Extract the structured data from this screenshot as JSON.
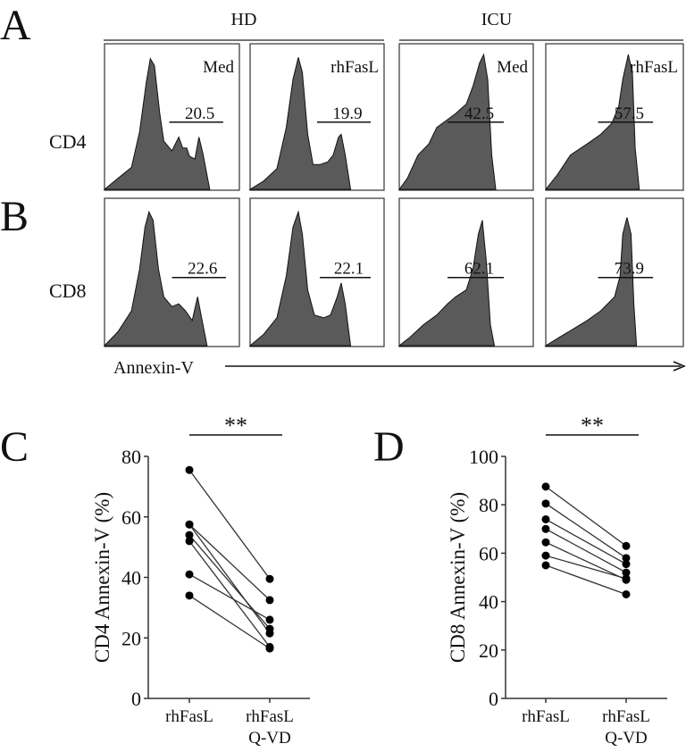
{
  "panel_labels": {
    "a": "A",
    "b": "B",
    "c": "C",
    "d": "D"
  },
  "groups": [
    "HD",
    "ICU"
  ],
  "row_labels": [
    "CD4",
    "CD8"
  ],
  "x_axis_label": "Annexin-V",
  "histograms": [
    {
      "row": "CD4",
      "group": "HD",
      "condition": "Med",
      "gate_value": "20.5"
    },
    {
      "row": "CD4",
      "group": "HD",
      "condition": "rhFasL",
      "gate_value": "19.9"
    },
    {
      "row": "CD4",
      "group": "ICU",
      "condition": "Med",
      "gate_value": "42.5"
    },
    {
      "row": "CD4",
      "group": "ICU",
      "condition": "rhFasL",
      "gate_value": "57.5"
    },
    {
      "row": "CD8",
      "group": "HD",
      "condition": "",
      "gate_value": "22.6"
    },
    {
      "row": "CD8",
      "group": "HD",
      "condition": "",
      "gate_value": "22.1"
    },
    {
      "row": "CD8",
      "group": "ICU",
      "condition": "",
      "gate_value": "62.1"
    },
    {
      "row": "CD8",
      "group": "ICU",
      "condition": "",
      "gate_value": "73.9"
    }
  ],
  "fill_color": "#5a5a5a",
  "chart_data": [
    {
      "type": "scatter",
      "panel": "C",
      "ylabel": "CD4 Annexin-V (%)",
      "categories": [
        "rhFasL",
        "rhFasL\nQ-VD"
      ],
      "category_lines": [
        [
          "rhFasL"
        ],
        [
          "rhFasL",
          "Q-VD"
        ]
      ],
      "ylim": [
        0,
        80
      ],
      "yticks": [
        0,
        20,
        40,
        60,
        80
      ],
      "paired": [
        [
          75.5,
          39.5
        ],
        [
          57.5,
          32.5
        ],
        [
          57.5,
          21.5
        ],
        [
          54,
          23
        ],
        [
          52,
          17
        ],
        [
          41,
          26
        ],
        [
          34,
          16.5
        ]
      ],
      "significance": "**"
    },
    {
      "type": "scatter",
      "panel": "D",
      "ylabel": "CD8 Annexin-V (%)",
      "categories": [
        "rhFasL",
        "rhFasL\nQ-VD"
      ],
      "category_lines": [
        [
          "rhFasL"
        ],
        [
          "rhFasL",
          "Q-VD"
        ]
      ],
      "ylim": [
        0,
        100
      ],
      "yticks": [
        0,
        20,
        40,
        60,
        80,
        100
      ],
      "paired": [
        [
          87.5,
          63
        ],
        [
          80.5,
          58
        ],
        [
          74,
          55.5
        ],
        [
          70,
          52
        ],
        [
          64.5,
          49
        ],
        [
          59,
          49.5
        ],
        [
          55,
          43
        ]
      ],
      "significance": "**"
    }
  ]
}
